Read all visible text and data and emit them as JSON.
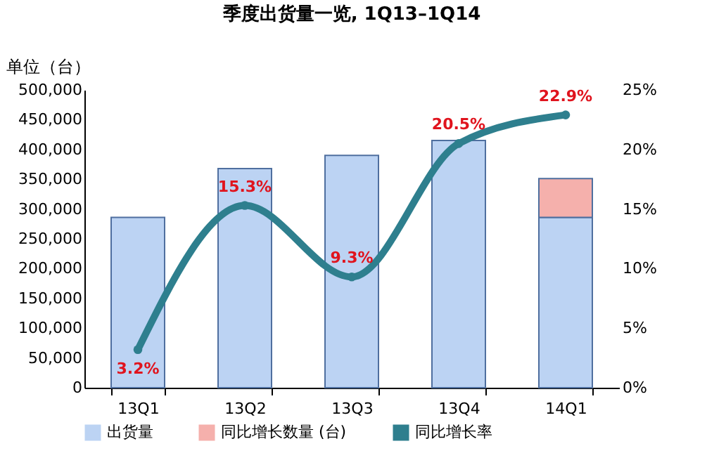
{
  "chart_data": {
    "type": "bar",
    "title": "季度出货量一览, 1Q13–1Q14",
    "ylabel": "单位（台）",
    "categories": [
      "13Q1",
      "13Q2",
      "13Q3",
      "13Q4",
      "14Q1"
    ],
    "stacked": true,
    "legend": "bottom",
    "marker": "circle",
    "series": [
      {
        "name": "出货量",
        "color": "#bcd3f3",
        "values": [
          286000,
          368000,
          390000,
          415000,
          286000
        ]
      },
      {
        "name": "同比增长数量 (台)",
        "color": "#f5b0ac",
        "values": [
          null,
          null,
          null,
          null,
          65000
        ]
      },
      {
        "name": "同比增长率",
        "type": "line",
        "axis": "y2",
        "color": "#2e7f8e",
        "values": [
          3.2,
          15.3,
          9.3,
          20.5,
          22.9
        ],
        "value_labels": [
          "3.2%",
          "15.3%",
          "9.3%",
          "20.5%",
          "22.9%"
        ]
      }
    ],
    "ylim": [
      0,
      500000
    ],
    "yticks": [
      {
        "value": 0,
        "label": "0"
      },
      {
        "value": 50000,
        "label": "50,000"
      },
      {
        "value": 100000,
        "label": "100,000"
      },
      {
        "value": 150000,
        "label": "150,000"
      },
      {
        "value": 200000,
        "label": "200,000"
      },
      {
        "value": 250000,
        "label": "250,000"
      },
      {
        "value": 300000,
        "label": "300,000"
      },
      {
        "value": 350000,
        "label": "350,000"
      },
      {
        "value": 400000,
        "label": "400,000"
      },
      {
        "value": 450000,
        "label": "450,000"
      },
      {
        "value": 500000,
        "label": "500,000"
      }
    ],
    "y2lim": [
      0,
      25
    ],
    "y2ticks": [
      {
        "value": 0,
        "label": "0%"
      },
      {
        "value": 5,
        "label": "5%"
      },
      {
        "value": 10,
        "label": "10%"
      },
      {
        "value": 15,
        "label": "15%"
      },
      {
        "value": 20,
        "label": "20%"
      },
      {
        "value": 25,
        "label": "25%"
      }
    ]
  }
}
